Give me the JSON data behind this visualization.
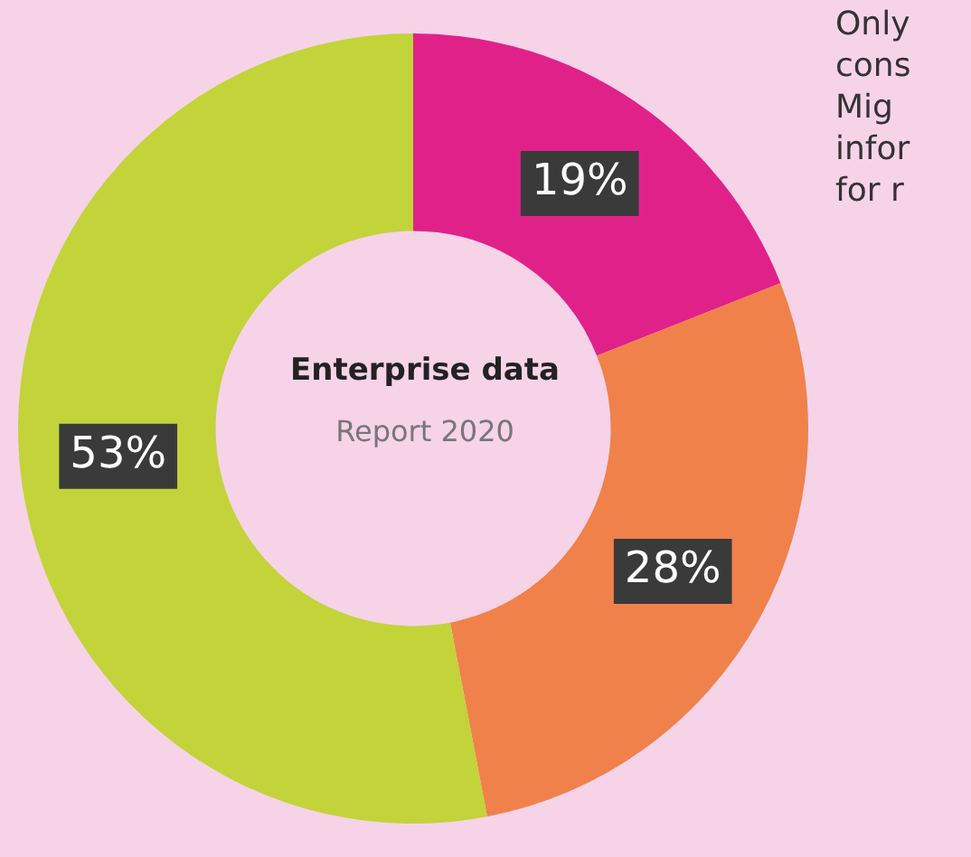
{
  "chart_data": {
    "type": "donut",
    "title": "Enterprise data",
    "subtitle": "Report 2020",
    "categories": [
      null,
      null,
      null
    ],
    "values": [
      19,
      28,
      53
    ],
    "colors": [
      "#e0218a",
      "#f0814a",
      "#c3d33a"
    ],
    "value_labels": [
      "19%",
      "28%",
      "53%"
    ],
    "annotations": [
      "Only",
      "cons",
      "Mig",
      "infor",
      "for r"
    ],
    "legend": false
  }
}
